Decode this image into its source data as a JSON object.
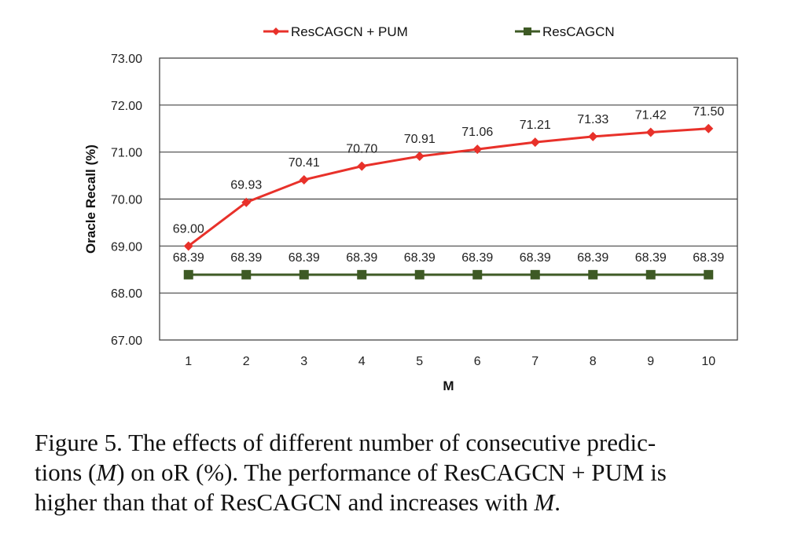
{
  "chart_data": {
    "type": "line",
    "title": "",
    "xlabel": "M",
    "ylabel": "Oracle Recall (%)",
    "x": [
      1,
      2,
      3,
      4,
      5,
      6,
      7,
      8,
      9,
      10
    ],
    "x_tick_labels": [
      "1",
      "2",
      "3",
      "4",
      "5",
      "6",
      "7",
      "8",
      "9",
      "10"
    ],
    "ylim": [
      67.0,
      73.0
    ],
    "y_ticks": [
      67.0,
      68.0,
      69.0,
      70.0,
      71.0,
      72.0,
      73.0
    ],
    "y_tick_labels": [
      "67.00",
      "68.00",
      "69.00",
      "70.00",
      "71.00",
      "72.00",
      "73.00"
    ],
    "grid": "horizontal",
    "legend_position": "top-center",
    "series": [
      {
        "name": "ResCAGCN + PUM",
        "color": "#e8312a",
        "marker": "diamond",
        "values": [
          69.0,
          69.93,
          70.41,
          70.7,
          70.91,
          71.06,
          71.21,
          71.33,
          71.42,
          71.5
        ],
        "labels": [
          "69.00",
          "69.93",
          "70.41",
          "70.70",
          "70.91",
          "71.06",
          "71.21",
          "71.33",
          "71.42",
          "71.50"
        ]
      },
      {
        "name": "ResCAGCN",
        "color": "#3e5a25",
        "marker": "square",
        "values": [
          68.39,
          68.39,
          68.39,
          68.39,
          68.39,
          68.39,
          68.39,
          68.39,
          68.39,
          68.39
        ],
        "labels": [
          "68.39",
          "68.39",
          "68.39",
          "68.39",
          "68.39",
          "68.39",
          "68.39",
          "68.39",
          "68.39",
          "68.39"
        ]
      }
    ]
  },
  "caption": {
    "line1": "Figure 5. The effects of different number of consecutive predic-",
    "line2_a": "tions (",
    "line2_m": "M",
    "line2_b": ") on oR (%). The performance of ResCAGCN + PUM is",
    "line3_a": "higher than that of ResCAGCN and increases with ",
    "line3_m": "M",
    "line3_b": "."
  }
}
